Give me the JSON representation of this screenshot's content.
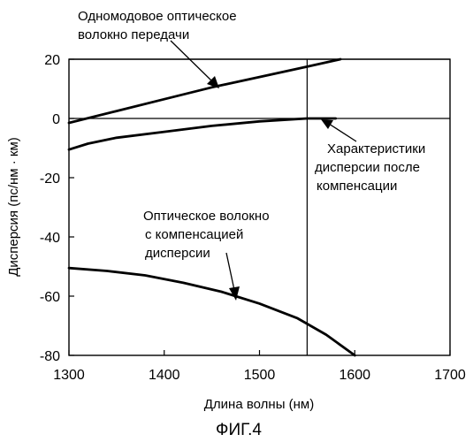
{
  "chart_data": {
    "type": "line",
    "xlabel": "Длина волны (нм)",
    "ylabel": "Дисперсия (пс/нм · км)",
    "caption": "ФИГ.4",
    "xlim": [
      1300,
      1700
    ],
    "ylim": [
      -80,
      20
    ],
    "xticks": [
      1300,
      1400,
      1500,
      1600,
      1700
    ],
    "yticks": [
      20,
      0,
      -20,
      -40,
      -60,
      -80
    ],
    "grid": false,
    "reference_lines": {
      "horizontal_y": [
        0,
        20
      ],
      "vertical_x": [
        1550
      ]
    },
    "series": [
      {
        "x": [
          1300,
          1350,
          1400,
          1450,
          1500,
          1550,
          1585
        ],
        "y": [
          -1.5,
          2.5,
          6.5,
          10.5,
          14.0,
          17.5,
          20.0
        ]
      },
      {
        "x": [
          1300,
          1320,
          1350,
          1400,
          1450,
          1500,
          1550,
          1580
        ],
        "y": [
          -10.5,
          -8.5,
          -6.5,
          -4.5,
          -2.5,
          -1.0,
          0.0,
          0.0
        ]
      },
      {
        "x": [
          1300,
          1340,
          1380,
          1420,
          1460,
          1500,
          1540,
          1570,
          1600
        ],
        "y": [
          -50.5,
          -51.5,
          -53.0,
          -55.5,
          -58.5,
          -62.5,
          -67.5,
          -73.0,
          -80.0
        ]
      }
    ],
    "annotations": [
      {
        "lines": [
          "Одномодовое оптическое",
          "волокно передачи"
        ]
      },
      {
        "lines": [
          "Характеристики",
          "дисперсии после",
          "компенсации"
        ]
      },
      {
        "lines": [
          "Оптическое волокно",
          "с компенсацией",
          "дисперсии"
        ]
      }
    ]
  }
}
